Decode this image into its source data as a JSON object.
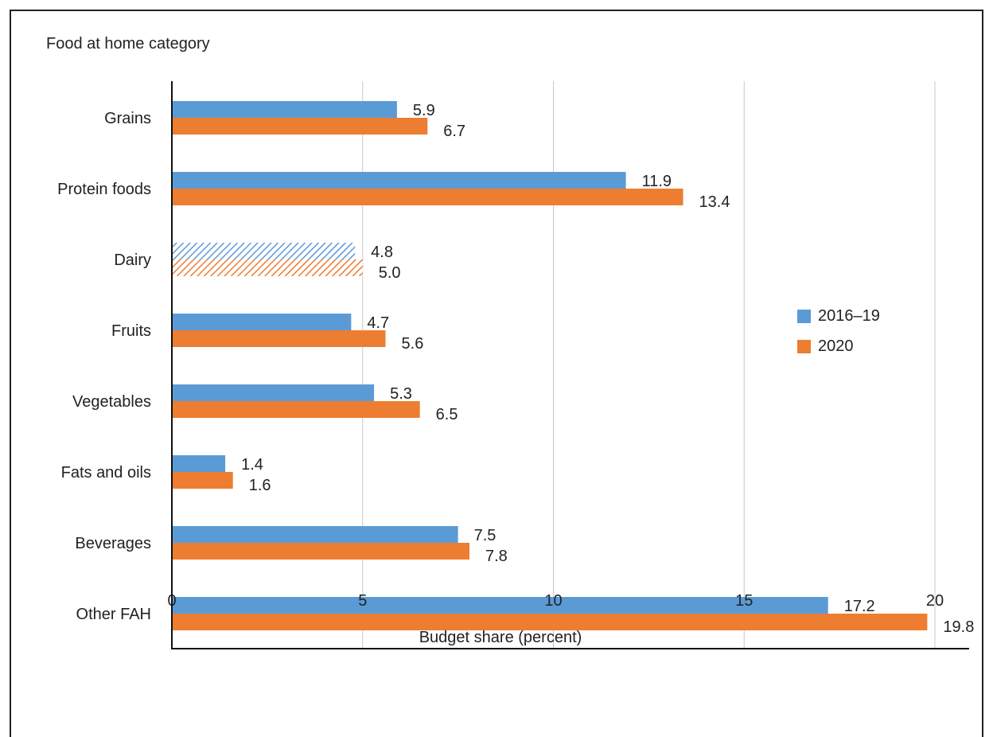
{
  "chart_data": {
    "type": "bar",
    "orientation": "horizontal",
    "title": "Food at home category",
    "xlabel": "Budget share (percent)",
    "categories": [
      "Grains",
      "Protein foods",
      "Dairy",
      "Fruits",
      "Vegetables",
      "Fats and oils",
      "Beverages",
      "Other FAH"
    ],
    "series": [
      {
        "name": "2016–19",
        "color": "#5b9bd5",
        "values": [
          5.9,
          11.9,
          4.8,
          4.7,
          5.3,
          1.4,
          7.5,
          17.2
        ],
        "labels": [
          "5.9",
          "11.9",
          "4.8",
          "4.7",
          "5.3",
          "1.4",
          "7.5",
          "17.2"
        ]
      },
      {
        "name": "2020",
        "color": "#ed7d31",
        "values": [
          6.7,
          13.4,
          5.0,
          5.6,
          6.5,
          1.6,
          7.8,
          19.8
        ],
        "labels": [
          "6.7",
          "13.4",
          "5.0",
          "5.6",
          "6.5",
          "1.6",
          "7.8",
          "19.8"
        ]
      }
    ],
    "hatched_categories": [
      "Dairy"
    ],
    "xlim": [
      0,
      20
    ],
    "xticks": [
      0,
      5,
      10,
      15,
      20
    ],
    "xtick_labels": [
      "0",
      "5",
      "10",
      "15",
      "20"
    ],
    "grid": "vertical",
    "legend_position": "right"
  }
}
